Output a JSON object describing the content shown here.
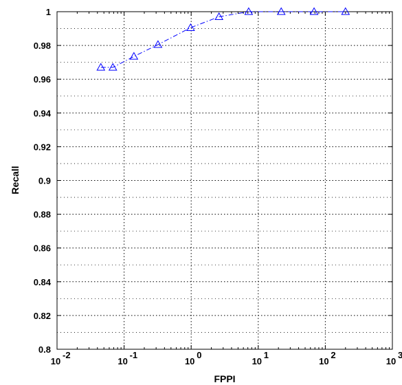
{
  "chart_data": {
    "type": "line",
    "title": "",
    "xlabel": "FPPI",
    "ylabel": "Recall",
    "xscale": "log",
    "xlim": [
      0.01,
      1000
    ],
    "ylim": [
      0.8,
      1.0
    ],
    "grid": true,
    "legend": "none",
    "x_tick_labels": [
      {
        "value": 0.01,
        "base": "10",
        "exp": "-2"
      },
      {
        "value": 0.1,
        "base": "10",
        "exp": "-1"
      },
      {
        "value": 1,
        "base": "10",
        "exp": "0"
      },
      {
        "value": 10,
        "base": "10",
        "exp": "1"
      },
      {
        "value": 100,
        "base": "10",
        "exp": "2"
      },
      {
        "value": 1000,
        "base": "10",
        "exp": "3"
      }
    ],
    "y_ticks": [
      0.8,
      0.82,
      0.84,
      0.86,
      0.88,
      0.9,
      0.92,
      0.94,
      0.96,
      0.98,
      1.0
    ],
    "y_tick_labels": [
      "0.8",
      "0.82",
      "0.84",
      "0.86",
      "0.88",
      "0.9",
      "0.92",
      "0.94",
      "0.96",
      "0.98",
      "1"
    ],
    "series": [
      {
        "color": "#0000ff",
        "marker": "triangle",
        "line_style": "dash-dot",
        "x": [
          0.045,
          0.068,
          0.14,
          0.32,
          0.98,
          2.6,
          7.2,
          22,
          68,
          200
        ],
        "y": [
          0.967,
          0.967,
          0.9735,
          0.9805,
          0.9905,
          0.997,
          1.0,
          1.0,
          1.0,
          1.0
        ]
      }
    ]
  }
}
